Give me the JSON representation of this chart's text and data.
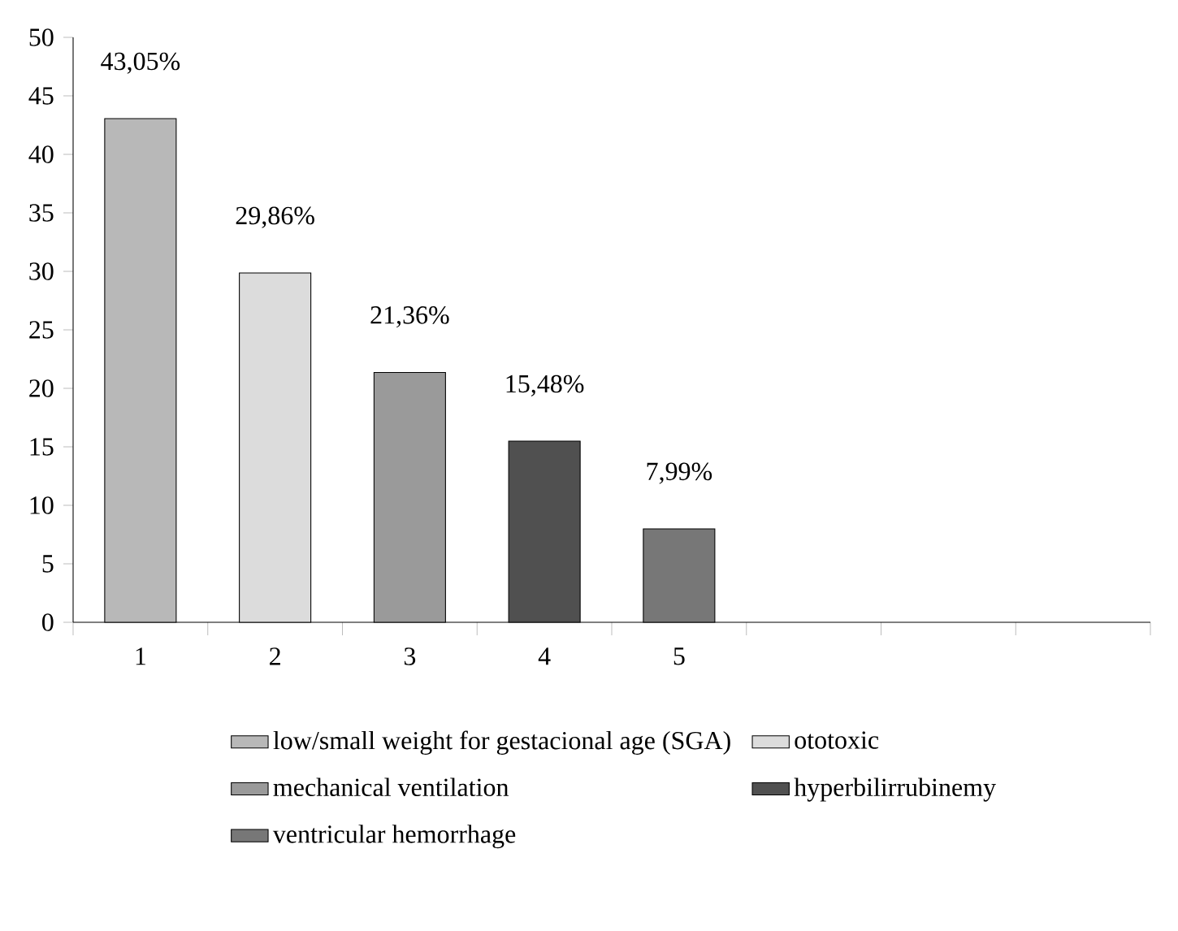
{
  "chart_data": {
    "type": "bar",
    "categories": [
      "1",
      "2",
      "3",
      "4",
      "5",
      null,
      null,
      null
    ],
    "ylim": [
      0,
      50
    ],
    "yticks": [
      0,
      5,
      10,
      15,
      20,
      25,
      30,
      35,
      40,
      45,
      50
    ],
    "legend": "bottom",
    "series": [
      {
        "name": "low/small weight for gestacional age (SGA)",
        "color": "#b8b8b8",
        "values": [
          43.05,
          null,
          null,
          null,
          null,
          null,
          null,
          null
        ],
        "value_labels": [
          "43,05%",
          null,
          null,
          null,
          null,
          null,
          null,
          null
        ]
      },
      {
        "name": "ototoxic",
        "color": "#dcdcdc",
        "values": [
          null,
          29.86,
          null,
          null,
          null,
          null,
          null,
          null
        ],
        "value_labels": [
          null,
          "29,86%",
          null,
          null,
          null,
          null,
          null,
          null
        ]
      },
      {
        "name": "mechanical ventilation",
        "color": "#9a9a9a",
        "values": [
          null,
          null,
          21.36,
          null,
          null,
          null,
          null,
          null
        ],
        "value_labels": [
          null,
          null,
          "21,36%",
          null,
          null,
          null,
          null,
          null
        ]
      },
      {
        "name": "hyperbilirrubinemy",
        "color": "#505050",
        "values": [
          null,
          null,
          null,
          15.48,
          null,
          null,
          null,
          null
        ],
        "value_labels": [
          null,
          null,
          null,
          "15,48%",
          null,
          null,
          null,
          null
        ]
      },
      {
        "name": "ventricular hemorrhage",
        "color": "#777777",
        "values": [
          null,
          null,
          null,
          null,
          7.99,
          null,
          null,
          null
        ],
        "value_labels": [
          null,
          null,
          null,
          null,
          "7,99%",
          null,
          null,
          null
        ]
      }
    ]
  }
}
